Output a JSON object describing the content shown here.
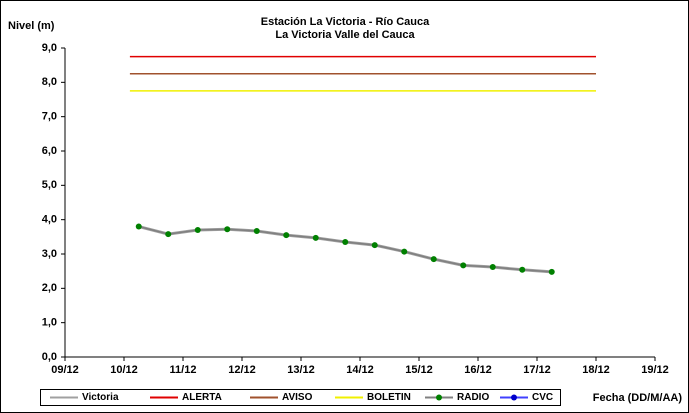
{
  "chart_data": {
    "type": "line",
    "title": "Estación La Victoria - Río Cauca",
    "subtitle": "La Victoria Valle del Cauca",
    "y_label": "Nivel (m)",
    "x_label": "Fecha (DD/M/AA)",
    "xlim": [
      9,
      19
    ],
    "xticks": [
      {
        "value": 9,
        "label": "09/12"
      },
      {
        "value": 10,
        "label": "10/12"
      },
      {
        "value": 11,
        "label": "11/12"
      },
      {
        "value": 12,
        "label": "12/12"
      },
      {
        "value": 13,
        "label": "13/12"
      },
      {
        "value": 14,
        "label": "14/12"
      },
      {
        "value": 15,
        "label": "15/12"
      },
      {
        "value": 16,
        "label": "16/12"
      },
      {
        "value": 17,
        "label": "17/12"
      },
      {
        "value": 18,
        "label": "18/12"
      },
      {
        "value": 19,
        "label": "19/12"
      }
    ],
    "ylim": [
      0,
      9
    ],
    "yticks": [
      {
        "value": 0,
        "label": "0,0"
      },
      {
        "value": 1,
        "label": "1,0"
      },
      {
        "value": 2,
        "label": "2,0"
      },
      {
        "value": 3,
        "label": "3,0"
      },
      {
        "value": 4,
        "label": "4,0"
      },
      {
        "value": 5,
        "label": "5,0"
      },
      {
        "value": 6,
        "label": "6,0"
      },
      {
        "value": 7,
        "label": "7,0"
      },
      {
        "value": 8,
        "label": "8,0"
      },
      {
        "value": 9,
        "label": "9,0"
      }
    ],
    "x": [
      10.25,
      10.75,
      11.25,
      11.75,
      12.25,
      12.75,
      13.25,
      13.75,
      14.25,
      14.75,
      15.25,
      15.75,
      16.25,
      16.75,
      17.25
    ],
    "series": [
      {
        "name": "Victoria",
        "color": "#a0a0a0",
        "values": [
          3.8,
          3.58,
          3.7,
          3.72,
          3.67,
          3.55,
          3.47,
          3.35,
          3.26,
          3.07,
          2.85,
          2.67,
          2.62,
          2.54,
          2.48
        ]
      },
      {
        "name": "ALERTA",
        "color": "#e00000",
        "x": [
          10.1,
          18
        ],
        "values": [
          8.75,
          8.75
        ]
      },
      {
        "name": "AVISO",
        "color": "#a0522d",
        "x": [
          10.1,
          18
        ],
        "values": [
          8.25,
          8.25
        ]
      },
      {
        "name": "BOLETIN",
        "color": "#f0f000",
        "x": [
          10.1,
          18
        ],
        "values": [
          7.75,
          7.75
        ]
      },
      {
        "name": "RADIO",
        "color": "#808080",
        "marker_color": "#008000",
        "values": [
          3.8,
          3.58,
          3.7,
          3.72,
          3.67,
          3.55,
          3.47,
          3.35,
          3.26,
          3.07,
          2.85,
          2.67,
          2.62,
          2.54,
          2.48
        ]
      },
      {
        "name": "CVC",
        "color": "#4040ff",
        "marker_color": "#0000cc",
        "values": [
          null,
          null,
          null,
          null,
          null,
          null,
          null,
          null,
          null,
          null,
          null,
          null,
          null,
          null,
          null
        ]
      }
    ]
  }
}
